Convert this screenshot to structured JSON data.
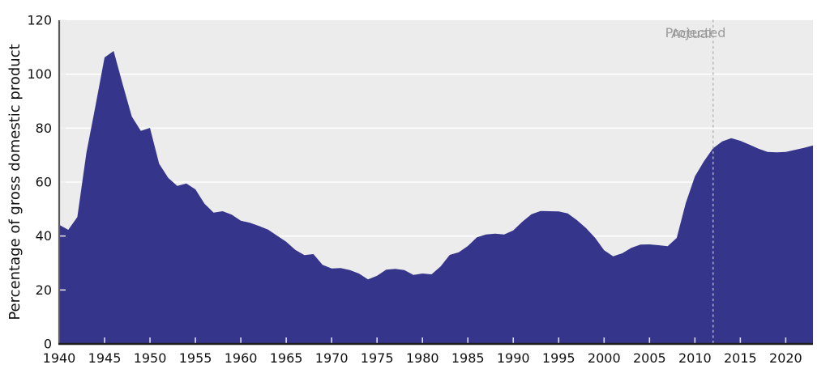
{
  "chart_data": {
    "type": "area",
    "title": "",
    "xlabel": "",
    "ylabel": "Percentage of gross domestic product",
    "xlim": [
      1940,
      2023
    ],
    "ylim": [
      0,
      120
    ],
    "x_ticks": [
      1940,
      1945,
      1950,
      1955,
      1960,
      1965,
      1970,
      1975,
      1980,
      1985,
      1990,
      1995,
      2000,
      2005,
      2010,
      2015,
      2020
    ],
    "y_ticks": [
      0,
      20,
      40,
      60,
      80,
      100,
      120
    ],
    "grid": "horizontal-white",
    "legend": "none",
    "x": [
      1940,
      1941,
      1942,
      1943,
      1944,
      1945,
      1946,
      1947,
      1948,
      1949,
      1950,
      1951,
      1952,
      1953,
      1954,
      1955,
      1956,
      1957,
      1958,
      1959,
      1960,
      1961,
      1962,
      1963,
      1964,
      1965,
      1966,
      1967,
      1968,
      1969,
      1970,
      1971,
      1972,
      1973,
      1974,
      1975,
      1976,
      1977,
      1978,
      1979,
      1980,
      1981,
      1982,
      1983,
      1984,
      1985,
      1986,
      1987,
      1988,
      1989,
      1990,
      1991,
      1992,
      1993,
      1994,
      1995,
      1996,
      1997,
      1998,
      1999,
      2000,
      2001,
      2002,
      2003,
      2004,
      2005,
      2006,
      2007,
      2008,
      2009,
      2010,
      2011,
      2012,
      2013,
      2014,
      2015,
      2016,
      2017,
      2018,
      2019,
      2020,
      2021,
      2022,
      2023
    ],
    "values": [
      44.2,
      42.3,
      47.0,
      70.9,
      88.3,
      106.2,
      108.6,
      96.2,
      84.3,
      79.0,
      80.1,
      66.8,
      61.6,
      58.6,
      59.5,
      57.3,
      52.0,
      48.7,
      49.2,
      47.9,
      45.7,
      44.9,
      43.7,
      42.4,
      40.1,
      37.9,
      34.9,
      32.9,
      33.3,
      29.3,
      28.0,
      28.1,
      27.4,
      26.1,
      23.9,
      25.3,
      27.5,
      27.8,
      27.4,
      25.6,
      26.1,
      25.8,
      28.7,
      33.0,
      34.0,
      36.3,
      39.5,
      40.6,
      40.9,
      40.6,
      42.1,
      45.3,
      48.1,
      49.3,
      49.2,
      49.1,
      48.4,
      45.9,
      43.0,
      39.4,
      34.7,
      32.5,
      33.6,
      35.6,
      36.8,
      36.9,
      36.6,
      36.2,
      39.3,
      52.3,
      62.1,
      67.7,
      72.5,
      75.1,
      76.3,
      75.3,
      73.9,
      72.4,
      71.2,
      71.0,
      71.2,
      71.9,
      72.7,
      73.6
    ],
    "annotations": {
      "actual": "Actual",
      "projected": "Projected",
      "divider_x": 2012
    },
    "colors": {
      "area_fill": "#36358c",
      "plot_bg": "#ececec",
      "grid": "#ffffff",
      "divider": "#b5b5b5",
      "annotation": "#8f8f8f",
      "tick_mark": "#eef0f5",
      "spine_left": "#5a5a5a",
      "spine_bottom": "#1f1f1f",
      "tick_label": "#111111"
    }
  }
}
